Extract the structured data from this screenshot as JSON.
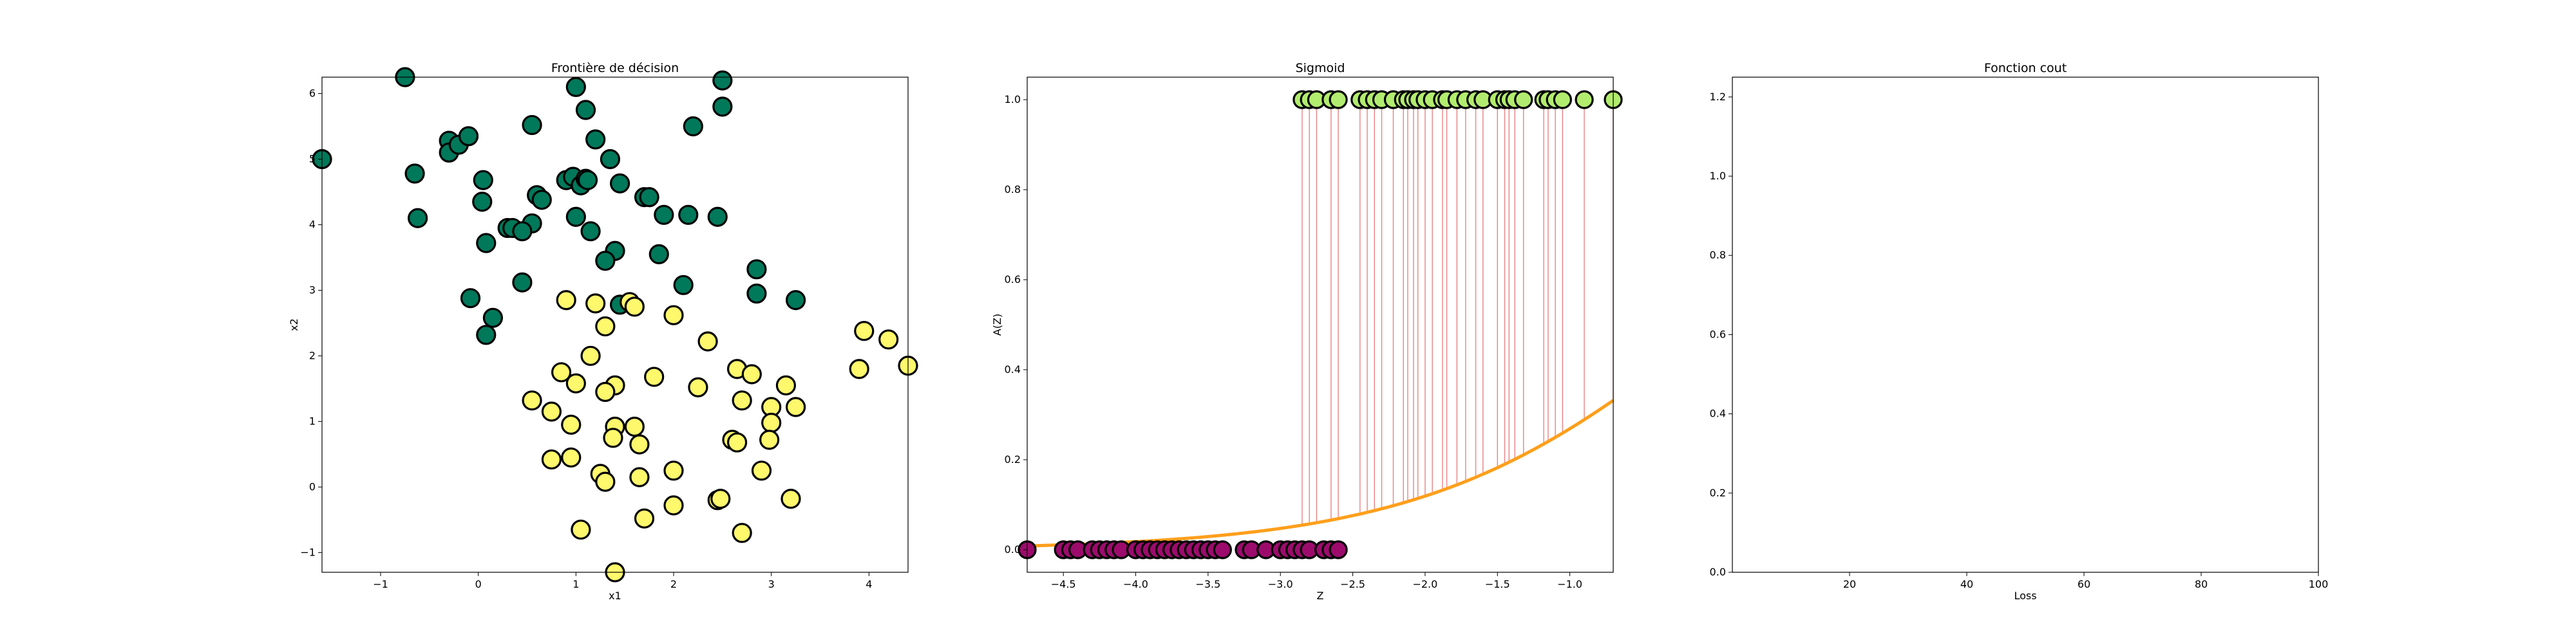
{
  "chart_data": [
    {
      "type": "scatter",
      "title": "Frontière de décision",
      "xlabel": "x1",
      "ylabel": "x2",
      "xlim": [
        -1.6,
        4.4
      ],
      "ylim": [
        -1.3,
        6.25
      ],
      "xticks": [
        -1,
        0,
        1,
        2,
        3,
        4
      ],
      "yticks": [
        -1,
        0,
        1,
        2,
        3,
        4,
        5,
        6
      ],
      "colors": {
        "class0": "#00785a",
        "class1": "#fef86c",
        "edge": "#000000"
      },
      "series": [
        {
          "class": 0,
          "points": [
            [
              -0.75,
              6.25
            ],
            [
              1.0,
              6.1
            ],
            [
              2.5,
              6.2
            ],
            [
              1.1,
              5.75
            ],
            [
              2.5,
              5.8
            ],
            [
              -1.6,
              5.0
            ],
            [
              -0.65,
              4.78
            ],
            [
              -0.3,
              5.28
            ],
            [
              -0.3,
              5.1
            ],
            [
              -0.2,
              5.22
            ],
            [
              -0.1,
              5.35
            ],
            [
              0.55,
              5.52
            ],
            [
              1.2,
              5.3
            ],
            [
              2.2,
              5.5
            ],
            [
              1.35,
              5.0
            ],
            [
              0.05,
              4.68
            ],
            [
              0.6,
              4.45
            ],
            [
              0.65,
              4.38
            ],
            [
              0.9,
              4.68
            ],
            [
              0.97,
              4.73
            ],
            [
              1.05,
              4.6
            ],
            [
              1.1,
              4.7
            ],
            [
              1.12,
              4.68
            ],
            [
              1.45,
              4.63
            ],
            [
              1.7,
              4.42
            ],
            [
              1.75,
              4.42
            ],
            [
              0.04,
              4.35
            ],
            [
              -0.62,
              4.1
            ],
            [
              0.3,
              3.95
            ],
            [
              0.35,
              3.95
            ],
            [
              0.55,
              4.02
            ],
            [
              0.45,
              3.9
            ],
            [
              1.0,
              4.12
            ],
            [
              1.15,
              3.9
            ],
            [
              1.9,
              4.15
            ],
            [
              2.15,
              4.15
            ],
            [
              2.45,
              4.12
            ],
            [
              0.08,
              3.72
            ],
            [
              1.4,
              3.6
            ],
            [
              1.3,
              3.45
            ],
            [
              1.85,
              3.55
            ],
            [
              -0.08,
              2.88
            ],
            [
              0.45,
              3.12
            ],
            [
              1.45,
              2.78
            ],
            [
              2.1,
              3.08
            ],
            [
              2.85,
              3.32
            ],
            [
              2.85,
              2.95
            ],
            [
              3.25,
              2.85
            ],
            [
              0.15,
              2.58
            ],
            [
              0.08,
              2.32
            ]
          ]
        },
        {
          "class": 1,
          "points": [
            [
              0.9,
              2.85
            ],
            [
              1.2,
              2.8
            ],
            [
              1.55,
              2.82
            ],
            [
              1.6,
              2.75
            ],
            [
              2.0,
              2.62
            ],
            [
              3.95,
              2.38
            ],
            [
              4.2,
              2.25
            ],
            [
              4.4,
              1.85
            ],
            [
              1.3,
              2.45
            ],
            [
              2.35,
              2.22
            ],
            [
              1.15,
              2.0
            ],
            [
              3.9,
              1.8
            ],
            [
              0.85,
              1.75
            ],
            [
              1.8,
              1.68
            ],
            [
              2.65,
              1.8
            ],
            [
              2.8,
              1.72
            ],
            [
              1.0,
              1.58
            ],
            [
              1.4,
              1.55
            ],
            [
              2.25,
              1.52
            ],
            [
              3.15,
              1.55
            ],
            [
              0.55,
              1.32
            ],
            [
              0.75,
              1.15
            ],
            [
              1.3,
              1.45
            ],
            [
              2.7,
              1.32
            ],
            [
              3.0,
              1.22
            ],
            [
              3.25,
              1.22
            ],
            [
              1.4,
              0.92
            ],
            [
              1.6,
              0.92
            ],
            [
              3.0,
              0.98
            ],
            [
              1.38,
              0.75
            ],
            [
              1.65,
              0.65
            ],
            [
              2.6,
              0.72
            ],
            [
              2.65,
              0.68
            ],
            [
              2.98,
              0.72
            ],
            [
              0.95,
              0.45
            ],
            [
              0.75,
              0.42
            ],
            [
              1.25,
              0.2
            ],
            [
              1.3,
              0.08
            ],
            [
              1.65,
              0.15
            ],
            [
              2.0,
              0.25
            ],
            [
              2.9,
              0.25
            ],
            [
              2.0,
              -0.28
            ],
            [
              2.45,
              -0.2
            ],
            [
              2.48,
              -0.18
            ],
            [
              3.2,
              -0.18
            ],
            [
              1.7,
              -0.48
            ],
            [
              1.05,
              -0.65
            ],
            [
              2.7,
              -0.7
            ],
            [
              1.4,
              -1.3
            ],
            [
              0.95,
              0.95
            ]
          ]
        }
      ]
    },
    {
      "type": "scatter",
      "title": "Sigmoid",
      "xlabel": "Z",
      "ylabel": "A(Z)",
      "xlim": [
        -4.75,
        -0.7
      ],
      "ylim": [
        -0.05,
        1.05
      ],
      "xticks": [
        -4.5,
        -4.0,
        -3.5,
        -3.0,
        -2.5,
        -2.0,
        -1.5,
        -1.0
      ],
      "xtick_labels": [
        "−4.5",
        "−4.0",
        "−3.5",
        "−3.0",
        "−2.5",
        "−2.0",
        "−1.5",
        "−1.0"
      ],
      "yticks": [
        0.0,
        0.2,
        0.4,
        0.6,
        0.8,
        1.0
      ],
      "ytick_labels": [
        "0.0",
        "0.2",
        "0.4",
        "0.6",
        "0.8",
        "1.0"
      ],
      "colors": {
        "class1": "#b2ec6e",
        "class0": "#9c0b6c",
        "edge": "#000000",
        "curve": "#ff9f1c",
        "stem": "#e05a5a"
      },
      "curve": "sigmoid",
      "series": [
        {
          "class": 1,
          "y": 1.0,
          "z": [
            -2.85,
            -2.8,
            -2.75,
            -2.65,
            -2.6,
            -2.45,
            -2.4,
            -2.35,
            -2.3,
            -2.22,
            -2.15,
            -2.12,
            -2.08,
            -2.05,
            -2.0,
            -1.95,
            -1.88,
            -1.85,
            -1.78,
            -1.72,
            -1.65,
            -1.6,
            -1.5,
            -1.45,
            -1.42,
            -1.38,
            -1.32,
            -1.18,
            -1.15,
            -1.1,
            -1.05,
            -0.9,
            -0.7
          ]
        },
        {
          "class": 0,
          "y": 0.0,
          "z": [
            -4.75,
            -4.5,
            -4.45,
            -4.4,
            -4.3,
            -4.25,
            -4.2,
            -4.15,
            -4.1,
            -4.0,
            -3.95,
            -3.9,
            -3.85,
            -3.8,
            -3.75,
            -3.7,
            -3.65,
            -3.6,
            -3.55,
            -3.5,
            -3.45,
            -3.4,
            -3.25,
            -3.2,
            -3.1,
            -3.0,
            -2.95,
            -2.9,
            -2.85,
            -2.8,
            -2.7,
            -2.65,
            -2.6
          ]
        }
      ]
    },
    {
      "type": "line",
      "title": "Fonction cout",
      "xlabel": "Loss",
      "ylabel": "",
      "xlim": [
        0,
        100
      ],
      "ylim": [
        0.0,
        1.25
      ],
      "xticks": [
        20,
        40,
        60,
        80,
        100
      ],
      "yticks": [
        0.0,
        0.2,
        0.4,
        0.6,
        0.8,
        1.0,
        1.2
      ],
      "ytick_labels": [
        "0.0",
        "0.2",
        "0.4",
        "0.6",
        "0.8",
        "1.0",
        "1.2"
      ],
      "series": []
    }
  ]
}
